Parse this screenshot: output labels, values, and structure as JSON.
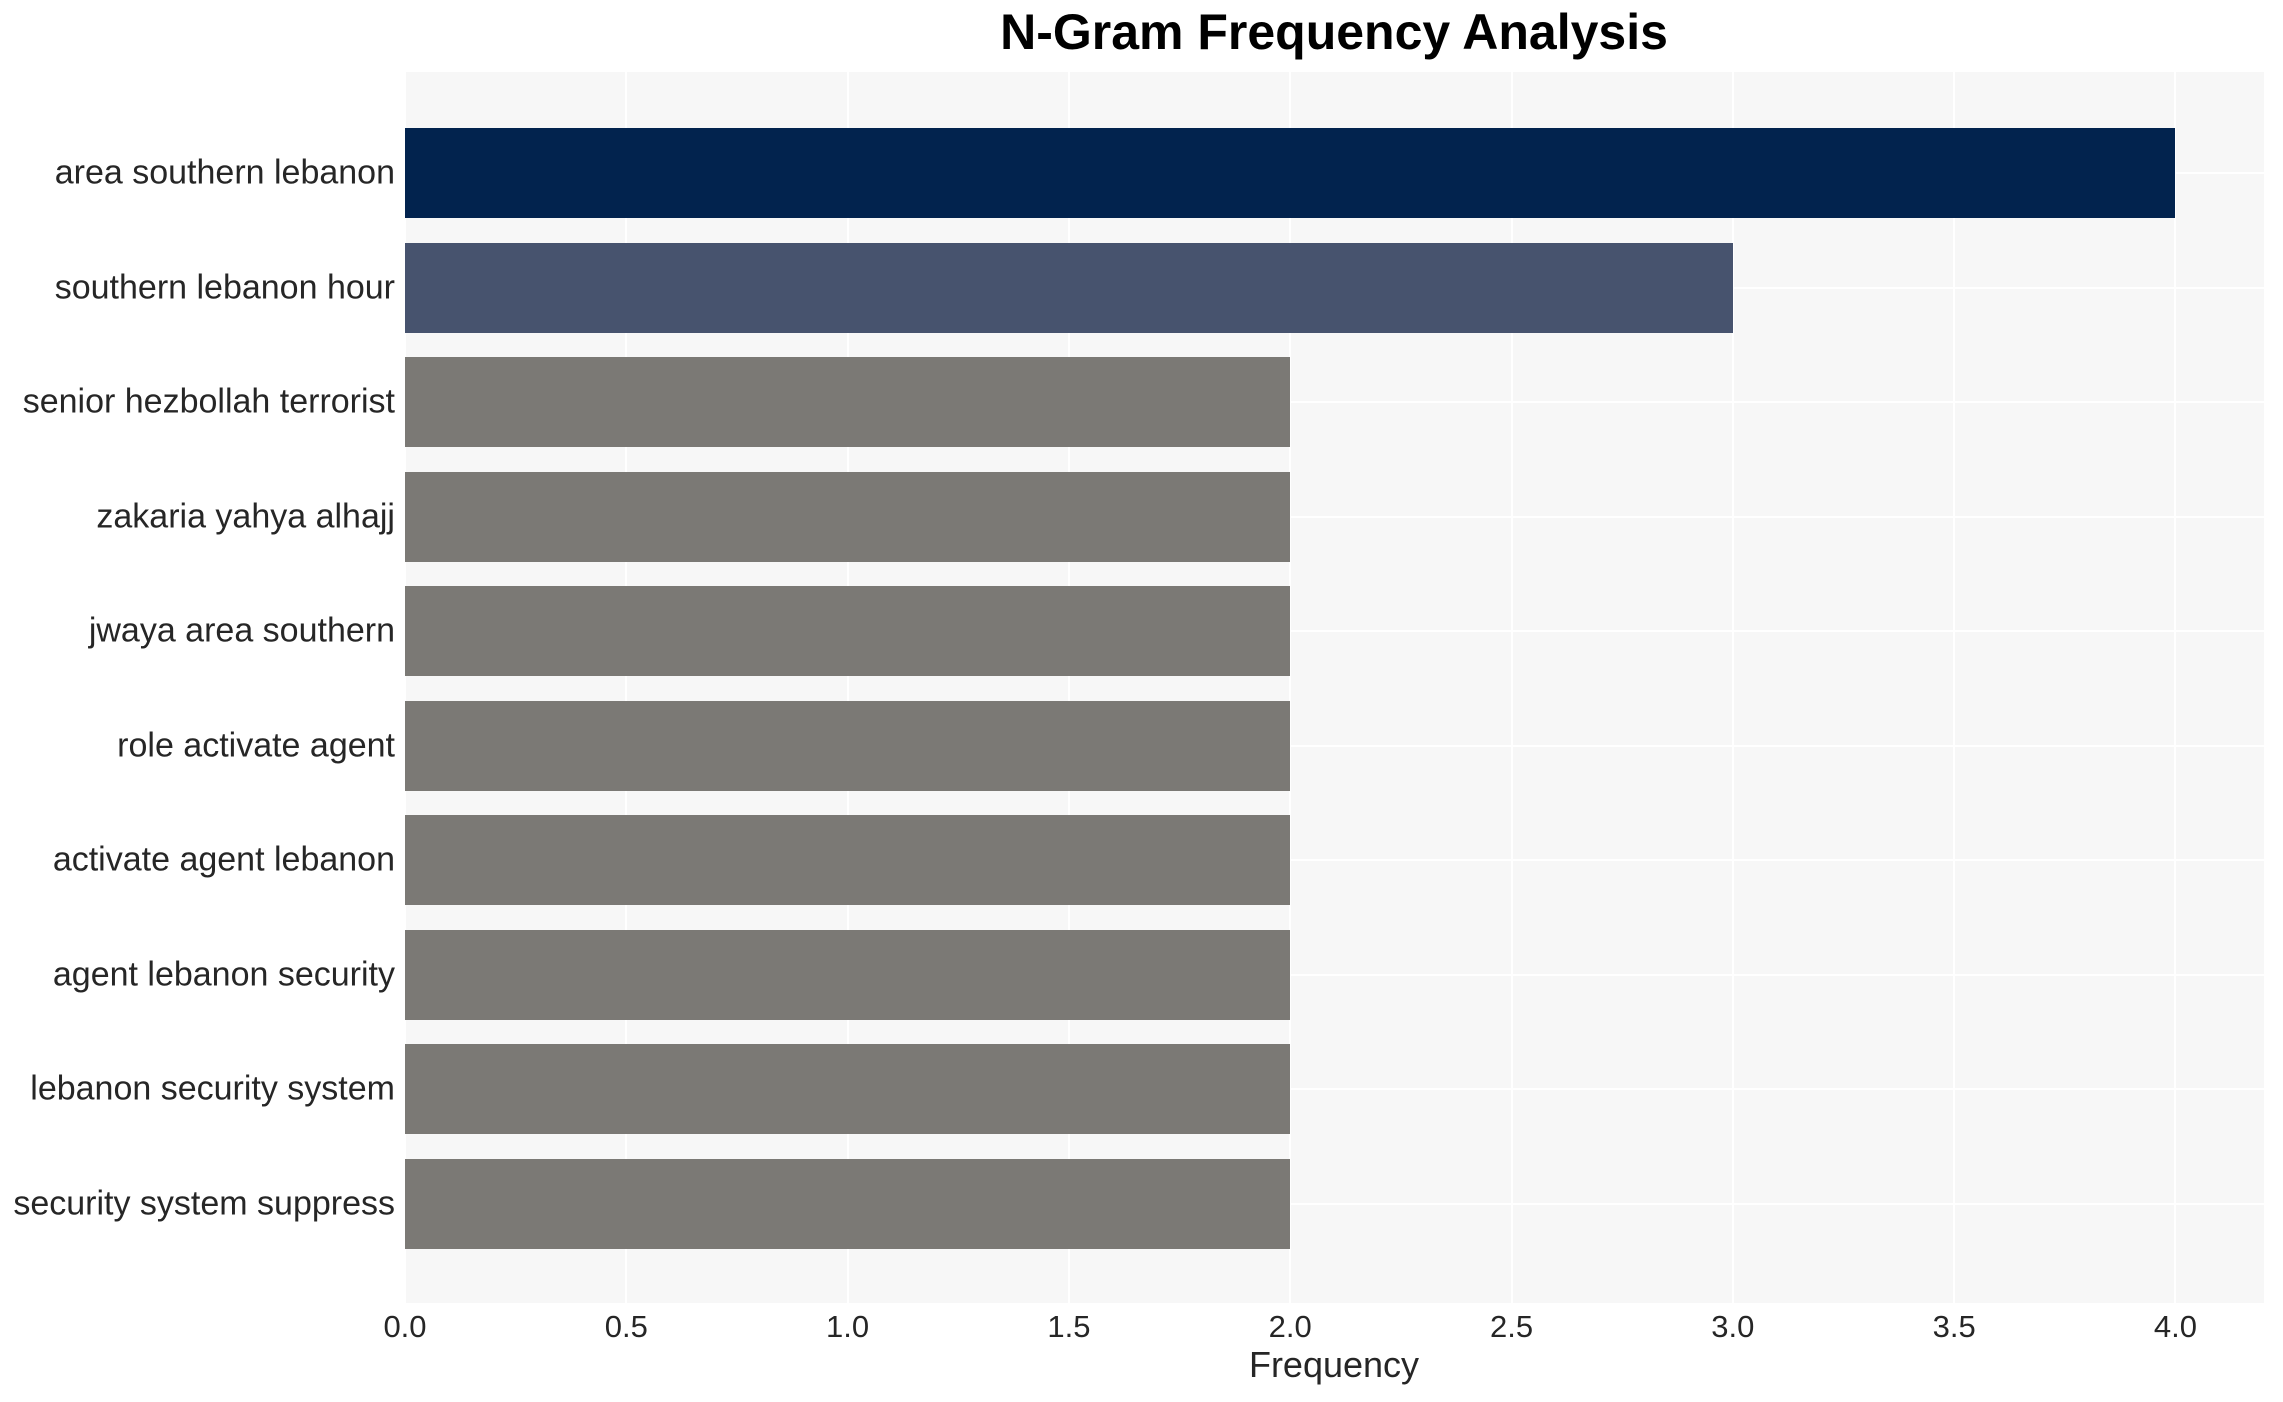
{
  "chart_data": {
    "type": "bar",
    "orientation": "horizontal",
    "title": "N-Gram Frequency Analysis",
    "xlabel": "Frequency",
    "ylabel": "",
    "categories": [
      "area southern lebanon",
      "southern lebanon hour",
      "senior hezbollah terrorist",
      "zakaria yahya alhajj",
      "jwaya area southern",
      "role activate agent",
      "activate agent lebanon",
      "agent lebanon security",
      "lebanon security system",
      "security system suppress"
    ],
    "values": [
      4,
      3,
      2,
      2,
      2,
      2,
      2,
      2,
      2,
      2
    ],
    "bar_colors": [
      "#02234E",
      "#47536E",
      "#7B7975",
      "#7B7975",
      "#7B7975",
      "#7B7975",
      "#7B7975",
      "#7B7975",
      "#7B7975",
      "#7B7975"
    ],
    "xlim": [
      0,
      4.2
    ],
    "xticks": [
      {
        "value": 0.0,
        "label": "0.0"
      },
      {
        "value": 0.5,
        "label": "0.5"
      },
      {
        "value": 1.0,
        "label": "1.0"
      },
      {
        "value": 1.5,
        "label": "1.5"
      },
      {
        "value": 2.0,
        "label": "2.0"
      },
      {
        "value": 2.5,
        "label": "2.5"
      },
      {
        "value": 3.0,
        "label": "3.0"
      },
      {
        "value": 3.5,
        "label": "3.5"
      },
      {
        "value": 4.0,
        "label": "4.0"
      }
    ],
    "grid": true,
    "legend": null,
    "colors": {
      "plot_background": "#F7F7F7",
      "figure_background": "#FFFFFF",
      "gridline": "#FFFFFF",
      "tick_text": "#262626",
      "title_text": "#000000"
    }
  }
}
